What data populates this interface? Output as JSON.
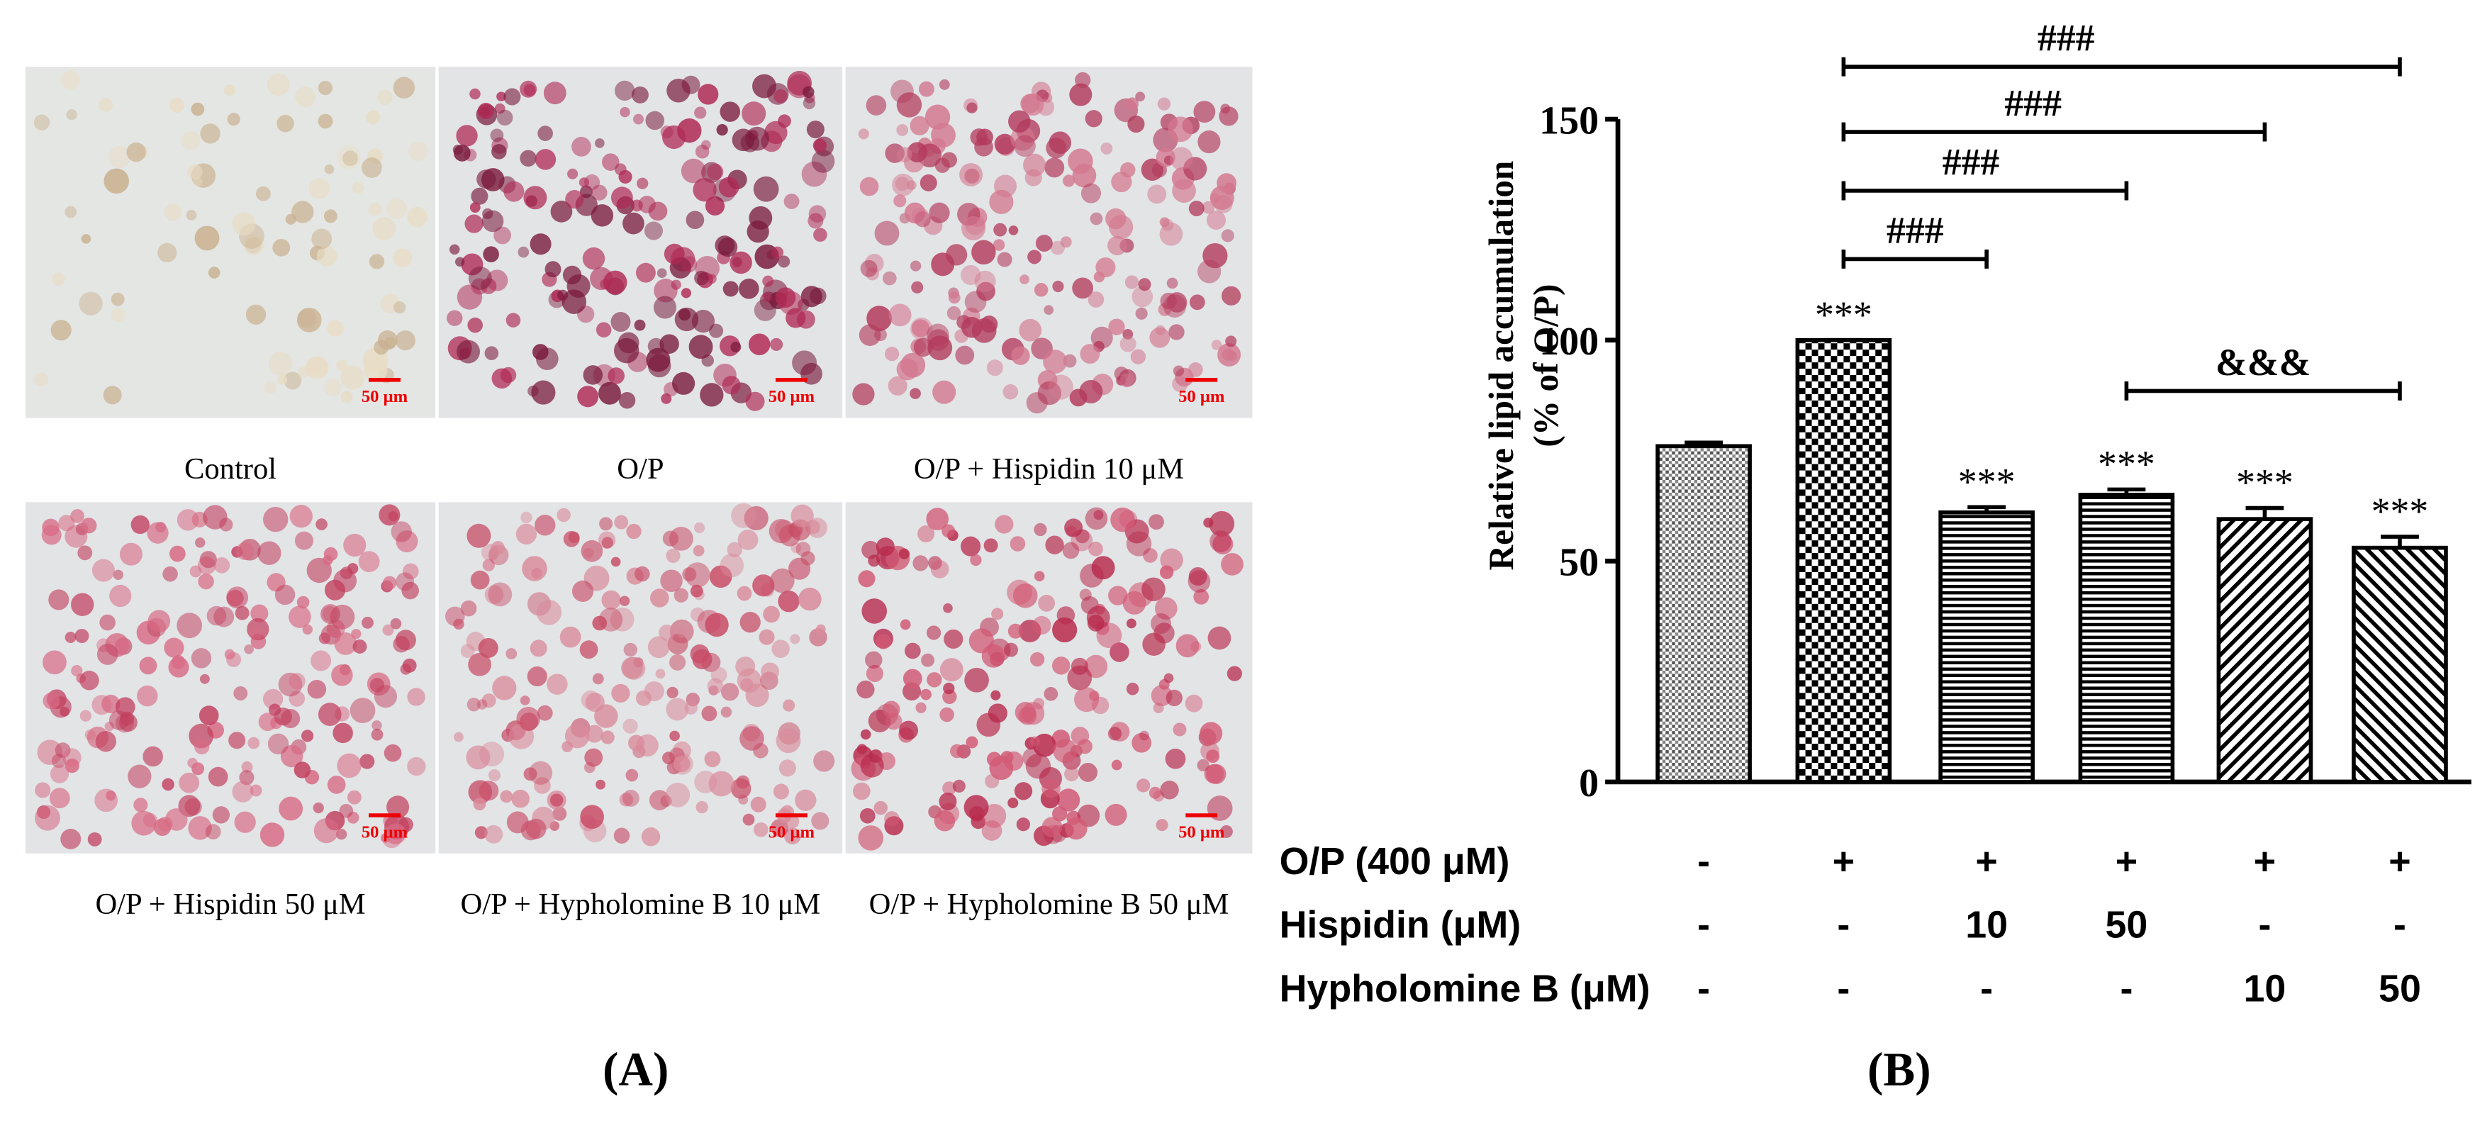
{
  "panel_a": {
    "label": "(A)",
    "images": [
      {
        "caption": "Control",
        "scale_bar": "50 μm"
      },
      {
        "caption": "O/P",
        "scale_bar": "50 μm"
      },
      {
        "caption": "O/P + Hispidin 10 μM",
        "scale_bar": "50 μm"
      },
      {
        "caption": "O/P + Hispidin 50 μM",
        "scale_bar": "50 μm"
      },
      {
        "caption": "O/P + Hypholomine B 10 μM",
        "scale_bar": "50 μm"
      },
      {
        "caption": "O/P + Hypholomine B 50 μM",
        "scale_bar": "50 μm"
      }
    ]
  },
  "chart_data": {
    "type": "bar",
    "panel_label": "(B)",
    "y_label": "Relative lipid accumulation",
    "y_sublabel": "(% of O/P)",
    "categories": [
      null,
      null,
      null,
      null,
      null,
      null
    ],
    "values": [
      76,
      100,
      61,
      65,
      59.5,
      53
    ],
    "errors": [
      0.8,
      0,
      1.2,
      1.2,
      2.5,
      2.5
    ],
    "value_annotations": [
      null,
      "***",
      "***",
      "***",
      "***",
      "***"
    ],
    "patterns": [
      "dots",
      "checker",
      "hlines",
      "hlines",
      "diag-right",
      "diag-left"
    ],
    "color": "#000000",
    "ylim": [
      0,
      150
    ],
    "yticks": [
      0,
      50,
      100,
      150
    ],
    "brackets": [
      {
        "from": 1,
        "to": 5,
        "label": "###"
      },
      {
        "from": 1,
        "to": 4,
        "label": "###"
      },
      {
        "from": 1,
        "to": 3,
        "label": "###"
      },
      {
        "from": 1,
        "to": 2,
        "label": "###"
      },
      {
        "from": 3,
        "to": 5,
        "label": "&&&"
      }
    ],
    "treatments": [
      {
        "name": "O/P (400 μM)",
        "marks": [
          "-",
          "+",
          "+",
          "+",
          "+",
          "+"
        ]
      },
      {
        "name": "Hispidin (μM)",
        "marks": [
          "-",
          "-",
          "10",
          "50",
          "-",
          "-"
        ]
      },
      {
        "name": "Hypholomine B (μM)",
        "marks": [
          "-",
          "-",
          "-",
          "-",
          "10",
          "50"
        ]
      }
    ]
  }
}
